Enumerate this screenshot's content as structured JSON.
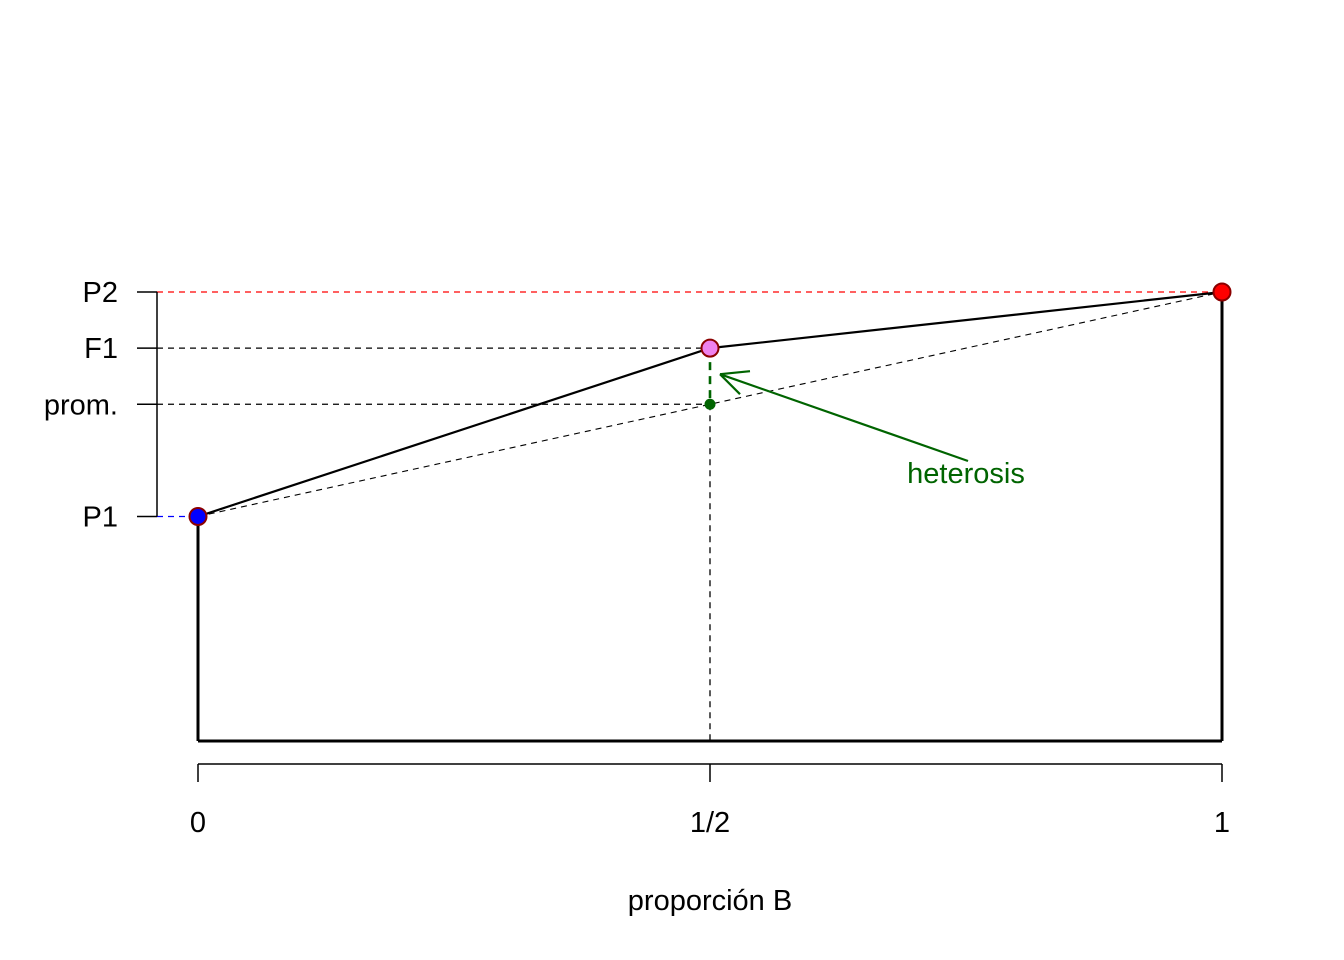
{
  "chart_data": {
    "type": "line",
    "title": "",
    "xlabel": "proporción B",
    "ylabel": "",
    "xlim": [
      0,
      1
    ],
    "ylim": [
      0,
      4
    ],
    "grid": false,
    "x_ticks": [
      {
        "value": 0,
        "label": "0"
      },
      {
        "value": 0.5,
        "label": "1/2"
      },
      {
        "value": 1,
        "label": "1"
      }
    ],
    "y_ticks": [
      {
        "value": 4.0,
        "label": "P2"
      },
      {
        "value": 3.5,
        "label": "F1"
      },
      {
        "value": 3.0,
        "label": "prom."
      },
      {
        "value": 2.0,
        "label": "P1"
      }
    ],
    "points": [
      {
        "name": "P1",
        "x": 0,
        "y": 2.0,
        "color": "#0000ff"
      },
      {
        "name": "F1",
        "x": 0.5,
        "y": 3.5,
        "color": "#ee82ee"
      },
      {
        "name": "P2",
        "x": 1,
        "y": 4.0,
        "color": "#ff0000"
      }
    ],
    "midparent": {
      "x": 0.5,
      "y": 3.0,
      "color": "#006400"
    },
    "annotation": {
      "text": "heterosis",
      "color": "#006400",
      "target": {
        "x": 0.5,
        "y": 3.25
      }
    },
    "colors": {
      "p1": "#0000ff",
      "p2": "#ff0000",
      "f1": "#ee82ee",
      "heterosis": "#006400",
      "line": "#000000"
    }
  }
}
